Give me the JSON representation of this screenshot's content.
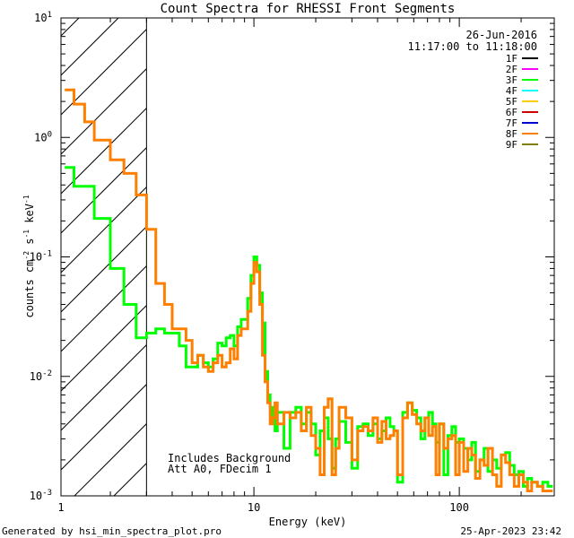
{
  "chart_data": {
    "type": "line",
    "title": "Count Spectra for RHESSI Front Segments",
    "xlabel": "Energy (keV)",
    "ylabel": {
      "base": "counts cm",
      "exp1": "-2",
      "mid1": " s",
      "exp2": "-1",
      "mid2": " keV",
      "exp3": "-1"
    },
    "x_scale": "log",
    "y_scale": "log",
    "xlim": [
      1.15,
      290
    ],
    "ylim": [
      0.001,
      10
    ],
    "x_ticks": [
      {
        "value": 1,
        "label": "1"
      },
      {
        "value": 10,
        "label": "10"
      },
      {
        "value": 100,
        "label": "100"
      }
    ],
    "y_ticks": [
      {
        "value": 0.001,
        "base": "10",
        "exp": "-3"
      },
      {
        "value": 0.01,
        "base": "10",
        "exp": "-2"
      },
      {
        "value": 0.1,
        "base": "10",
        "exp": "-1"
      },
      {
        "value": 1,
        "base": "10",
        "exp": "0"
      },
      {
        "value": 10,
        "base": "10",
        "exp": "1"
      }
    ],
    "shaded_region": {
      "x_from": 1.15,
      "x_to": 3.0,
      "pattern": "diagonal-hatch"
    },
    "date": "26-Jun-2016",
    "time_range": "11:17:00 to 11:18:00",
    "annotations": [
      "Includes Background",
      "Att A0, FDecim 1"
    ],
    "legend": [
      {
        "name": "1F",
        "color": "#000000"
      },
      {
        "name": "2F",
        "color": "#ff00ff"
      },
      {
        "name": "3F",
        "color": "#00ff00"
      },
      {
        "name": "4F",
        "color": "#00ffff"
      },
      {
        "name": "5F",
        "color": "#ffcc00"
      },
      {
        "name": "6F",
        "color": "#cc0000"
      },
      {
        "name": "7F",
        "color": "#0000cc"
      },
      {
        "name": "8F",
        "color": "#ff8000"
      },
      {
        "name": "9F",
        "color": "#808000"
      }
    ],
    "series": [
      {
        "name": "3F",
        "color": "#00ff00",
        "edges": [
          1.2,
          1.33,
          1.5,
          1.67,
          2.0,
          2.33,
          2.67,
          3.0,
          3.33,
          3.67,
          4.0,
          4.33,
          4.67,
          5.0,
          5.33,
          5.67,
          6.0,
          6.33,
          6.67,
          7.0,
          7.33,
          7.67,
          8.0,
          8.33,
          8.67,
          9.0,
          9.33,
          9.67,
          10.0,
          10.33,
          10.67,
          11.0,
          11.33,
          11.67,
          12.0,
          12.33,
          12.67,
          13.0,
          14.0,
          15.0,
          16.0,
          17.0,
          18.0,
          19.0,
          20.0,
          21.0,
          22.0,
          23.0,
          24.0,
          25.0,
          26.0,
          28.0,
          30.0,
          32.0,
          34.0,
          36.0,
          38.0,
          40.0,
          42.0,
          44.0,
          46.0,
          48.0,
          50.0,
          53.0,
          56.0,
          59.0,
          62.0,
          65.0,
          68.0,
          71.0,
          74.0,
          77.0,
          80.0,
          84.0,
          88.0,
          92.0,
          96.0,
          100.0,
          105.0,
          110.0,
          115.0,
          120.0,
          126.0,
          132.0,
          138.0,
          145.0,
          152.0,
          160.0,
          168.0,
          176.0,
          185.0,
          195.0,
          205.0,
          215.0,
          225.0,
          240.0,
          255.0,
          270.0,
          285.0
        ],
        "values": [
          0.56,
          0.39,
          0.39,
          0.21,
          0.08,
          0.04,
          0.021,
          0.023,
          0.025,
          0.023,
          0.023,
          0.018,
          0.012,
          0.012,
          0.015,
          0.013,
          0.012,
          0.014,
          0.019,
          0.018,
          0.021,
          0.022,
          0.018,
          0.026,
          0.03,
          0.03,
          0.045,
          0.07,
          0.1,
          0.085,
          0.05,
          0.028,
          0.011,
          0.007,
          0.0055,
          0.0045,
          0.0035,
          0.005,
          0.0025,
          0.005,
          0.0055,
          0.004,
          0.005,
          0.004,
          0.0022,
          0.0035,
          0.0045,
          0.003,
          0.0017,
          0.003,
          0.0042,
          0.0028,
          0.0017,
          0.0038,
          0.004,
          0.0032,
          0.004,
          0.003,
          0.0035,
          0.0045,
          0.0038,
          0.0035,
          0.0013,
          0.005,
          0.006,
          0.0052,
          0.0045,
          0.003,
          0.0045,
          0.005,
          0.004,
          0.0028,
          0.004,
          0.0015,
          0.0032,
          0.0038,
          0.0028,
          0.003,
          0.0025,
          0.002,
          0.0028,
          0.0016,
          0.002,
          0.0025,
          0.0016,
          0.002,
          0.0017,
          0.0022,
          0.0023,
          0.0018,
          0.0015,
          0.0016,
          0.0012,
          0.0014,
          0.0013,
          0.0012,
          0.0013,
          0.0012
        ]
      },
      {
        "name": "8F",
        "color": "#ff8000",
        "edges": [
          1.2,
          1.33,
          1.5,
          1.67,
          2.0,
          2.33,
          2.67,
          3.0,
          3.33,
          3.67,
          4.0,
          4.33,
          4.67,
          5.0,
          5.33,
          5.67,
          6.0,
          6.33,
          6.67,
          7.0,
          7.33,
          7.67,
          8.0,
          8.33,
          8.67,
          9.0,
          9.33,
          9.67,
          10.0,
          10.33,
          10.67,
          11.0,
          11.33,
          11.67,
          12.0,
          12.33,
          12.67,
          13.0,
          14.0,
          15.0,
          16.0,
          17.0,
          18.0,
          19.0,
          20.0,
          21.0,
          22.0,
          23.0,
          24.0,
          25.0,
          26.0,
          28.0,
          30.0,
          32.0,
          34.0,
          36.0,
          38.0,
          40.0,
          42.0,
          44.0,
          46.0,
          48.0,
          50.0,
          53.0,
          56.0,
          59.0,
          62.0,
          65.0,
          68.0,
          71.0,
          74.0,
          77.0,
          80.0,
          84.0,
          88.0,
          92.0,
          96.0,
          100.0,
          105.0,
          110.0,
          115.0,
          120.0,
          126.0,
          132.0,
          138.0,
          145.0,
          152.0,
          160.0,
          168.0,
          176.0,
          185.0,
          195.0,
          205.0,
          215.0,
          225.0,
          240.0,
          255.0,
          270.0,
          285.0
        ],
        "values": [
          2.5,
          1.9,
          1.35,
          0.95,
          0.65,
          0.5,
          0.33,
          0.17,
          0.06,
          0.04,
          0.025,
          0.025,
          0.02,
          0.013,
          0.015,
          0.012,
          0.011,
          0.013,
          0.015,
          0.012,
          0.013,
          0.017,
          0.014,
          0.022,
          0.025,
          0.025,
          0.035,
          0.06,
          0.09,
          0.075,
          0.04,
          0.015,
          0.009,
          0.006,
          0.004,
          0.0045,
          0.006,
          0.004,
          0.005,
          0.0045,
          0.005,
          0.0035,
          0.0055,
          0.0032,
          0.0025,
          0.0015,
          0.0055,
          0.0065,
          0.0015,
          0.0025,
          0.0055,
          0.0045,
          0.002,
          0.0035,
          0.0038,
          0.0035,
          0.0045,
          0.0028,
          0.0042,
          0.003,
          0.0032,
          0.0035,
          0.0015,
          0.0045,
          0.006,
          0.0048,
          0.004,
          0.0035,
          0.0045,
          0.0032,
          0.0038,
          0.0015,
          0.004,
          0.0025,
          0.003,
          0.0032,
          0.0015,
          0.0028,
          0.0016,
          0.0025,
          0.0022,
          0.0014,
          0.002,
          0.0018,
          0.0025,
          0.0015,
          0.0012,
          0.0022,
          0.0019,
          0.0015,
          0.0012,
          0.0015,
          0.0013,
          0.0011,
          0.0013,
          0.0012,
          0.0011,
          0.0011
        ]
      }
    ]
  },
  "footer": {
    "generated_by": "Generated by hsi_min_spectra_plot.pro",
    "timestamp": "25-Apr-2023 23:42"
  }
}
